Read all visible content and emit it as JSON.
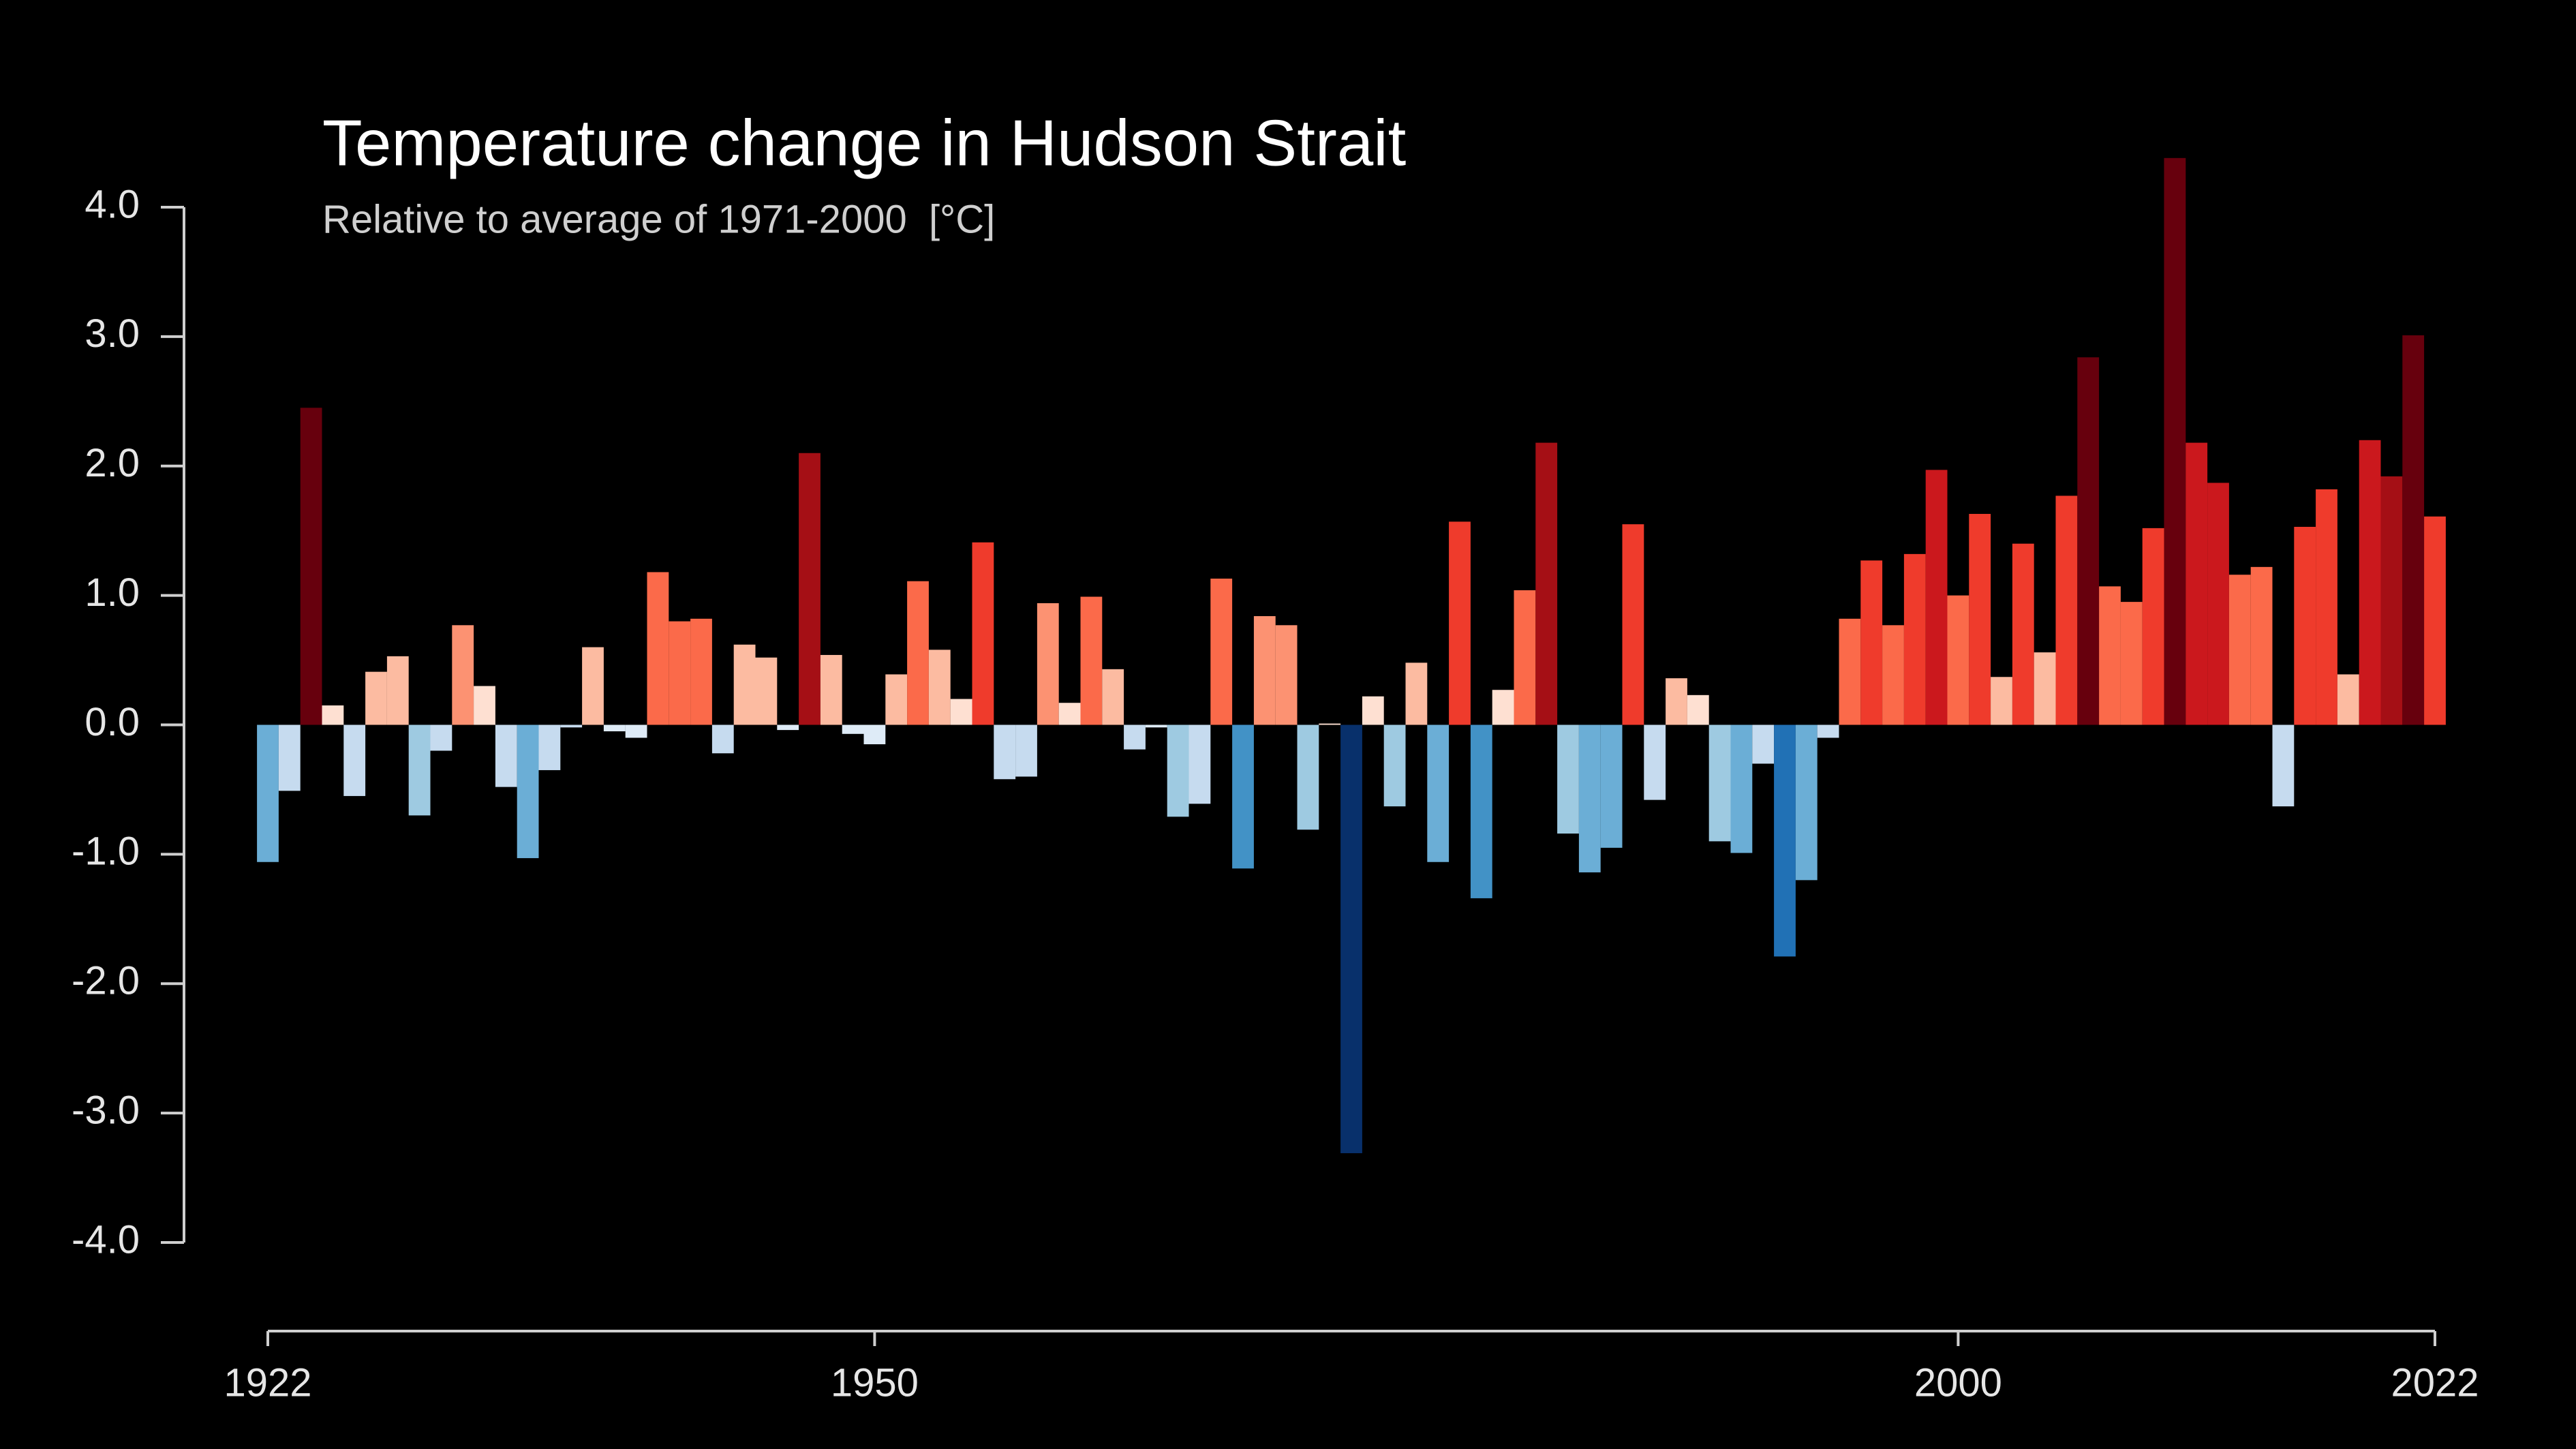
{
  "chart_data": {
    "type": "bar",
    "title": "Temperature change in Hudson Strait",
    "subtitle": "Relative to average of 1971-2000  [°C]",
    "x": [
      1922,
      1923,
      1924,
      1925,
      1926,
      1927,
      1928,
      1929,
      1930,
      1931,
      1932,
      1933,
      1934,
      1935,
      1936,
      1937,
      1938,
      1939,
      1940,
      1941,
      1942,
      1943,
      1944,
      1945,
      1946,
      1947,
      1948,
      1949,
      1950,
      1951,
      1952,
      1953,
      1954,
      1955,
      1956,
      1957,
      1958,
      1959,
      1960,
      1961,
      1962,
      1963,
      1964,
      1965,
      1966,
      1967,
      1968,
      1969,
      1970,
      1971,
      1972,
      1973,
      1974,
      1975,
      1976,
      1977,
      1978,
      1979,
      1980,
      1981,
      1982,
      1983,
      1984,
      1985,
      1986,
      1987,
      1988,
      1989,
      1990,
      1991,
      1992,
      1993,
      1994,
      1995,
      1996,
      1997,
      1998,
      1999,
      2000,
      2001,
      2002,
      2003,
      2004,
      2005,
      2006,
      2007,
      2008,
      2009,
      2010,
      2011,
      2012,
      2013,
      2014,
      2015,
      2016,
      2017,
      2018,
      2019,
      2020,
      2021,
      2022
    ],
    "values": [
      -1.06,
      -0.51,
      2.45,
      0.15,
      -0.55,
      0.41,
      0.53,
      -0.7,
      -0.2,
      0.77,
      0.3,
      -0.48,
      -1.03,
      -0.35,
      -0.02,
      0.6,
      -0.05,
      -0.1,
      1.18,
      0.8,
      0.82,
      -0.22,
      0.62,
      0.52,
      -0.04,
      2.1,
      0.54,
      -0.07,
      -0.15,
      0.39,
      1.11,
      0.58,
      0.2,
      1.41,
      -0.42,
      -0.4,
      0.94,
      0.17,
      0.99,
      0.43,
      -0.19,
      -0.02,
      -0.71,
      -0.61,
      1.13,
      -1.11,
      0.84,
      0.77,
      -0.81,
      0.01,
      -3.31,
      0.22,
      -0.63,
      0.48,
      -1.06,
      1.57,
      -1.34,
      0.27,
      1.04,
      2.18,
      -0.84,
      -1.14,
      -0.95,
      1.55,
      -0.58,
      0.36,
      0.23,
      -0.9,
      -0.99,
      -0.3,
      -1.79,
      -1.2,
      -0.1,
      0.82,
      1.27,
      0.77,
      1.32,
      1.97,
      1.0,
      1.63,
      0.37,
      1.4,
      0.56,
      1.77,
      2.84,
      1.07,
      0.95,
      1.52,
      4.38,
      2.18,
      1.87,
      1.16,
      1.22,
      -0.63,
      1.53,
      1.82,
      0.39,
      2.2,
      1.92,
      3.01,
      1.61
    ],
    "colors": [
      "#6baed6",
      "#c6dbef",
      "#67000d",
      "#fee0d2",
      "#c6dbef",
      "#fcbba1",
      "#fcbba1",
      "#9ecae1",
      "#c6dbef",
      "#fc9272",
      "#fee0d2",
      "#c6dbef",
      "#6baed6",
      "#c6dbef",
      "#c6dbef",
      "#fcbba1",
      "#deebf7",
      "#deebf7",
      "#fb6a4a",
      "#fb6a4a",
      "#fb6a4a",
      "#c6dbef",
      "#fcbba1",
      "#fcbba1",
      "#deebf7",
      "#a50f15",
      "#fcbba1",
      "#deebf7",
      "#deebf7",
      "#fcbba1",
      "#fb6a4a",
      "#fcbba1",
      "#fee0d2",
      "#ef3b2c",
      "#c6dbef",
      "#c6dbef",
      "#fc9272",
      "#fee0d2",
      "#fb6a4a",
      "#fcbba1",
      "#c6dbef",
      "#deebf7",
      "#9ecae1",
      "#c6dbef",
      "#fb6a4a",
      "#4292c6",
      "#fc9272",
      "#fc9272",
      "#9ecae1",
      "#fee0d2",
      "#08306b",
      "#fee0d2",
      "#9ecae1",
      "#fcbba1",
      "#6baed6",
      "#ef3b2c",
      "#4292c6",
      "#fee0d2",
      "#fb6a4a",
      "#a50f15",
      "#9ecae1",
      "#6baed6",
      "#6baed6",
      "#ef3b2c",
      "#c6dbef",
      "#fcbba1",
      "#fee0d2",
      "#9ecae1",
      "#6baed6",
      "#c6dbef",
      "#2171b5",
      "#6baed6",
      "#c6dbef",
      "#fb6a4a",
      "#ef3b2c",
      "#fb6a4a",
      "#ef3b2c",
      "#cb181d",
      "#fb6a4a",
      "#ef3b2c",
      "#fcbba1",
      "#ef3b2c",
      "#fcbba1",
      "#ef3b2c",
      "#67000d",
      "#fb6a4a",
      "#fb6a4a",
      "#ef3b2c",
      "#67000d",
      "#cb181d",
      "#cb181d",
      "#fb6a4a",
      "#fb6a4a",
      "#c6dbef",
      "#ef3b2c",
      "#ef3b2c",
      "#fcbba1",
      "#cb181d",
      "#a50f15",
      "#67000d",
      "#ef3b2c"
    ],
    "xlim": [
      1922,
      2022
    ],
    "xticks": [
      1922,
      1950,
      2000,
      2022
    ],
    "ylim": [
      -4,
      4
    ],
    "yticks": [
      {
        "value": -4,
        "label": "-4.0"
      },
      {
        "value": -3,
        "label": "-3.0"
      },
      {
        "value": -2,
        "label": "-2.0"
      },
      {
        "value": -1,
        "label": "-1.0"
      },
      {
        "value": 0,
        "label": "0.0"
      },
      {
        "value": 1,
        "label": "1.0"
      },
      {
        "value": 2,
        "label": "2.0"
      },
      {
        "value": 3,
        "label": "3.0"
      },
      {
        "value": 4,
        "label": "4.0"
      }
    ]
  }
}
